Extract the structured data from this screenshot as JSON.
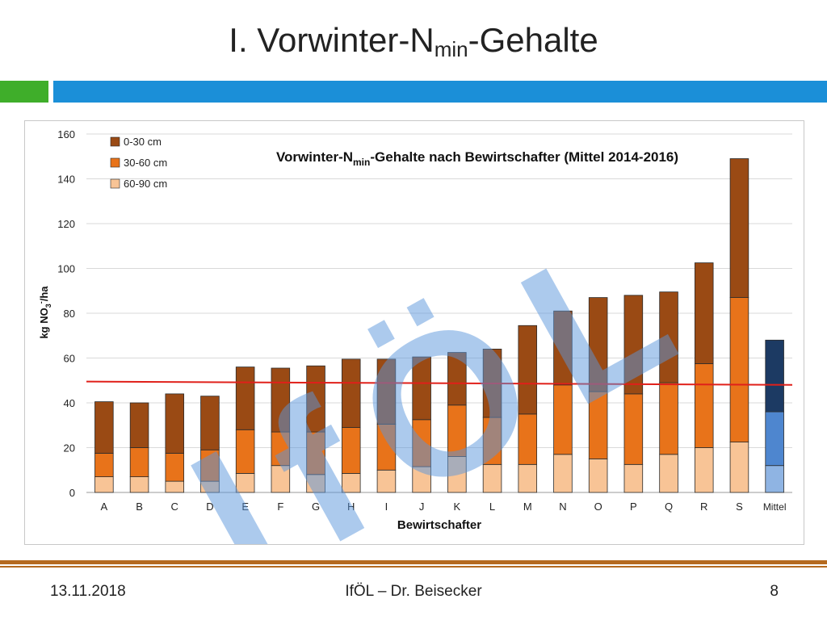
{
  "slide": {
    "title_prefix": "I. Vorwinter-N",
    "title_sub": "min",
    "title_suffix": "-Gehalte"
  },
  "footer": {
    "date": "13.11.2018",
    "center": "IfÖL – Dr. Beisecker",
    "page": "8"
  },
  "watermark": "IfÖL",
  "colors": {
    "layer_0_30": "#9a4a14",
    "layer_30_60": "#e8731a",
    "layer_60_90": "#f8c496",
    "mean_0_30": "#1c3a63",
    "mean_30_60": "#4e86cf",
    "mean_60_90": "#8fb4e3",
    "reference_line": "#e0201a",
    "green_bar": "#3fae2a",
    "blue_bar": "#1b8fd8",
    "footer_rule": "#b56a1f"
  },
  "chart_data": {
    "type": "bar",
    "stacked": true,
    "title_prefix": "Vorwinter-N",
    "title_sub": "min",
    "title_suffix": "-Gehalte nach Bewirtschafter (Mittel 2014-2016)",
    "xlabel": "Bewirtschafter",
    "ylabel_prefix": "kg NO",
    "ylabel_sub": "3",
    "ylabel_sup": "-",
    "ylabel_suffix": "/ha",
    "ylim": [
      0,
      160
    ],
    "yticks": [
      0,
      20,
      40,
      60,
      80,
      100,
      120,
      140,
      160
    ],
    "grid": true,
    "legend_position": "top-left",
    "categories": [
      "A",
      "B",
      "C",
      "D",
      "E",
      "F",
      "G",
      "H",
      "I",
      "J",
      "K",
      "L",
      "M",
      "N",
      "O",
      "P",
      "Q",
      "R",
      "S",
      "Mittel"
    ],
    "series": [
      {
        "name": "60-90 cm",
        "values": [
          7,
          7,
          5,
          5,
          8.5,
          12,
          8,
          8.5,
          10,
          11.5,
          16,
          12.5,
          12.5,
          17,
          15,
          12.5,
          17,
          20,
          22.5,
          12
        ]
      },
      {
        "name": "30-60 cm",
        "values": [
          10.5,
          13,
          12.5,
          14,
          19.5,
          15,
          19,
          20.5,
          20.5,
          21,
          23,
          21,
          22.5,
          31,
          30,
          31.5,
          32,
          37.5,
          64.5,
          24
        ]
      },
      {
        "name": "0-30 cm",
        "values": [
          23,
          20,
          26.5,
          24,
          28,
          28.5,
          29.5,
          30.5,
          29,
          28,
          23.5,
          30.5,
          39.5,
          33,
          42,
          44,
          40.5,
          45,
          62,
          32
        ]
      }
    ],
    "reference_line": {
      "start": 49.5,
      "end": 48
    }
  }
}
